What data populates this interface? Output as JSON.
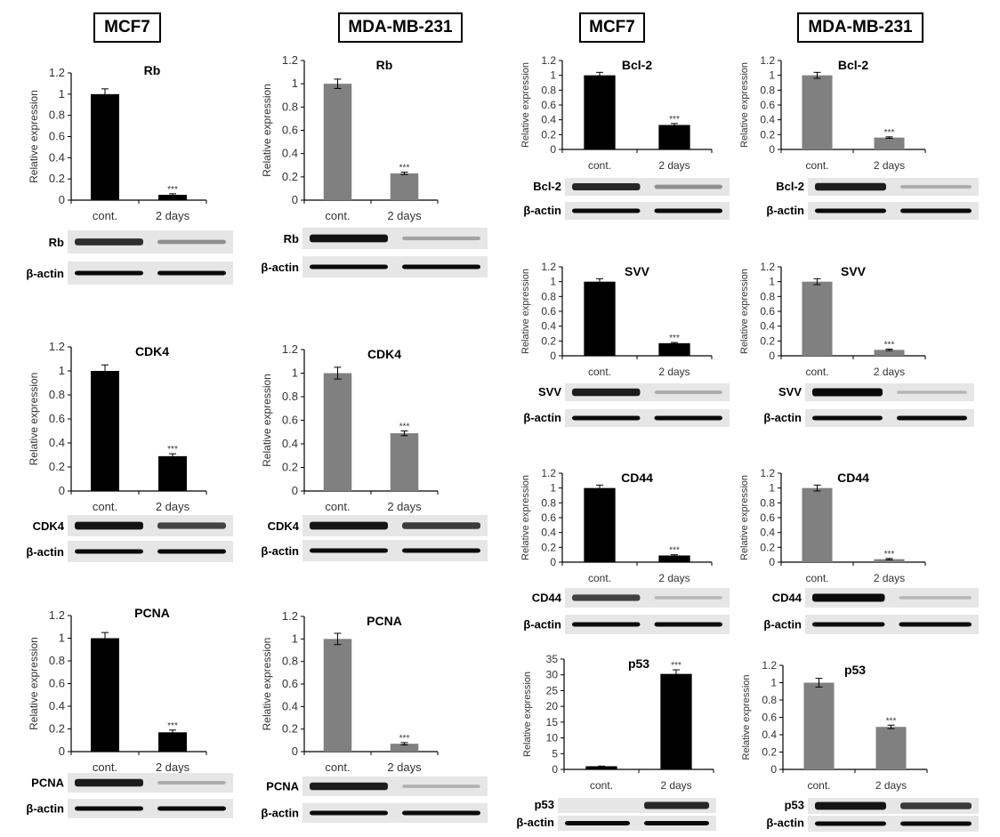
{
  "headers": [
    "MCF7",
    "MDA-MB-231",
    "MCF7",
    "MDA-MB-231"
  ],
  "ylabel": "Relative expression",
  "categories": [
    "cont.",
    "2 days"
  ],
  "loading_control": "β-actin",
  "significance": "***",
  "colors": {
    "mcf7": "#000000",
    "mda": "#808080"
  },
  "chart_data": [
    {
      "type": "bar",
      "cell_line": "MCF7",
      "title": "Rb",
      "values": [
        1.0,
        0.05
      ],
      "errors": [
        0.05,
        0.01
      ],
      "ylim": [
        0,
        1.2
      ],
      "yticks": [
        "0",
        "0.2",
        "0.4",
        "0.6",
        "0.8",
        "1",
        "1.2"
      ],
      "blot": "Rb",
      "band_intensity": [
        0.8,
        0.3
      ]
    },
    {
      "type": "bar",
      "cell_line": "MCF7",
      "title": "CDK4",
      "values": [
        1.0,
        0.29
      ],
      "errors": [
        0.05,
        0.02
      ],
      "ylim": [
        0,
        1.2
      ],
      "yticks": [
        "0",
        "0.2",
        "0.4",
        "0.6",
        "0.8",
        "1",
        "1.2"
      ],
      "blot": "CDK4",
      "band_intensity": [
        0.95,
        0.7
      ]
    },
    {
      "type": "bar",
      "cell_line": "MCF7",
      "title": "PCNA",
      "values": [
        1.0,
        0.17
      ],
      "errors": [
        0.05,
        0.02
      ],
      "ylim": [
        0,
        1.2
      ],
      "yticks": [
        "0",
        "0.2",
        "0.4",
        "0.6",
        "0.8",
        "1",
        "1.2"
      ],
      "blot": "PCNA",
      "band_intensity": [
        0.9,
        0.15
      ]
    },
    {
      "type": "bar",
      "cell_line": "MDA-MB-231",
      "title": "Rb",
      "values": [
        1.0,
        0.23
      ],
      "errors": [
        0.04,
        0.01
      ],
      "ylim": [
        0,
        1.2
      ],
      "yticks": [
        "0",
        "0.2",
        "0.4",
        "0.6",
        "0.8",
        "1",
        "1.2"
      ],
      "blot": "Rb",
      "band_intensity": [
        0.95,
        0.2
      ]
    },
    {
      "type": "bar",
      "cell_line": "MDA-MB-231",
      "title": "CDK4",
      "values": [
        1.0,
        0.49
      ],
      "errors": [
        0.05,
        0.02
      ],
      "ylim": [
        0,
        1.2
      ],
      "yticks": [
        "0",
        "0.2",
        "0.4",
        "0.6",
        "0.8",
        "1",
        "1.2"
      ],
      "blot": "CDK4",
      "band_intensity": [
        0.95,
        0.75
      ]
    },
    {
      "type": "bar",
      "cell_line": "MDA-MB-231",
      "title": "PCNA",
      "values": [
        1.0,
        0.07
      ],
      "errors": [
        0.05,
        0.01
      ],
      "ylim": [
        0,
        1.2
      ],
      "yticks": [
        "0",
        "0.2",
        "0.4",
        "0.6",
        "0.8",
        "1",
        "1.2"
      ],
      "blot": "PCNA",
      "band_intensity": [
        0.9,
        0.12
      ]
    },
    {
      "type": "bar",
      "cell_line": "MCF7",
      "title": "Bcl-2",
      "values": [
        1.0,
        0.33
      ],
      "errors": [
        0.04,
        0.02
      ],
      "ylim": [
        0,
        1.2
      ],
      "yticks": [
        "0",
        "0.2",
        "0.4",
        "0.6",
        "0.8",
        "1",
        "1.2"
      ],
      "blot": "Bcl-2",
      "band_intensity": [
        0.85,
        0.3
      ]
    },
    {
      "type": "bar",
      "cell_line": "MCF7",
      "title": "SVV",
      "values": [
        1.0,
        0.17
      ],
      "errors": [
        0.04,
        0.01
      ],
      "ylim": [
        0,
        1.2
      ],
      "yticks": [
        "0",
        "0.2",
        "0.4",
        "0.6",
        "0.8",
        "1",
        "1.2"
      ],
      "blot": "SVV",
      "band_intensity": [
        0.9,
        0.15
      ]
    },
    {
      "type": "bar",
      "cell_line": "MCF7",
      "title": "CD44",
      "values": [
        1.0,
        0.09
      ],
      "errors": [
        0.04,
        0.01
      ],
      "ylim": [
        0,
        1.2
      ],
      "yticks": [
        "0",
        "0.2",
        "0.4",
        "0.6",
        "0.8",
        "1",
        "1.2"
      ],
      "blot": "CD44",
      "band_intensity": [
        0.7,
        0.1
      ]
    },
    {
      "type": "bar",
      "cell_line": "MCF7",
      "title": "p53",
      "values": [
        1.0,
        30.3
      ],
      "errors": [
        0.05,
        1.3
      ],
      "ylim": [
        0,
        35
      ],
      "yticks": [
        "0",
        "5",
        "10",
        "15",
        "20",
        "25",
        "30",
        "35"
      ],
      "blot": "p53",
      "band_intensity": [
        0.0,
        0.85
      ]
    },
    {
      "type": "bar",
      "cell_line": "MDA-MB-231",
      "title": "Bcl-2",
      "values": [
        1.0,
        0.16
      ],
      "errors": [
        0.04,
        0.01
      ],
      "ylim": [
        0,
        1.2
      ],
      "yticks": [
        "0",
        "0.2",
        "0.4",
        "0.6",
        "0.8",
        "1",
        "1.2"
      ],
      "blot": "Bcl-2",
      "band_intensity": [
        0.9,
        0.15
      ]
    },
    {
      "type": "bar",
      "cell_line": "MDA-MB-231",
      "title": "SVV",
      "values": [
        1.0,
        0.08
      ],
      "errors": [
        0.04,
        0.01
      ],
      "ylim": [
        0,
        1.2
      ],
      "yticks": [
        "0",
        "0.2",
        "0.4",
        "0.6",
        "0.8",
        "1",
        "1.2"
      ],
      "blot": "SVV",
      "band_intensity": [
        1.0,
        0.1
      ]
    },
    {
      "type": "bar",
      "cell_line": "MDA-MB-231",
      "title": "CD44",
      "values": [
        1.0,
        0.04
      ],
      "errors": [
        0.04,
        0.01
      ],
      "ylim": [
        0,
        1.2
      ],
      "yticks": [
        "0",
        "0.2",
        "0.4",
        "0.6",
        "0.8",
        "1",
        "1.2"
      ],
      "blot": "CD44",
      "band_intensity": [
        1.0,
        0.1
      ]
    },
    {
      "type": "bar",
      "cell_line": "MDA-MB-231",
      "title": "p53",
      "values": [
        1.0,
        0.49
      ],
      "errors": [
        0.05,
        0.02
      ],
      "ylim": [
        0,
        1.2
      ],
      "yticks": [
        "0",
        "0.2",
        "0.4",
        "0.6",
        "0.8",
        "1",
        "1.2"
      ],
      "blot": "p53",
      "band_intensity": [
        0.95,
        0.75
      ]
    }
  ]
}
